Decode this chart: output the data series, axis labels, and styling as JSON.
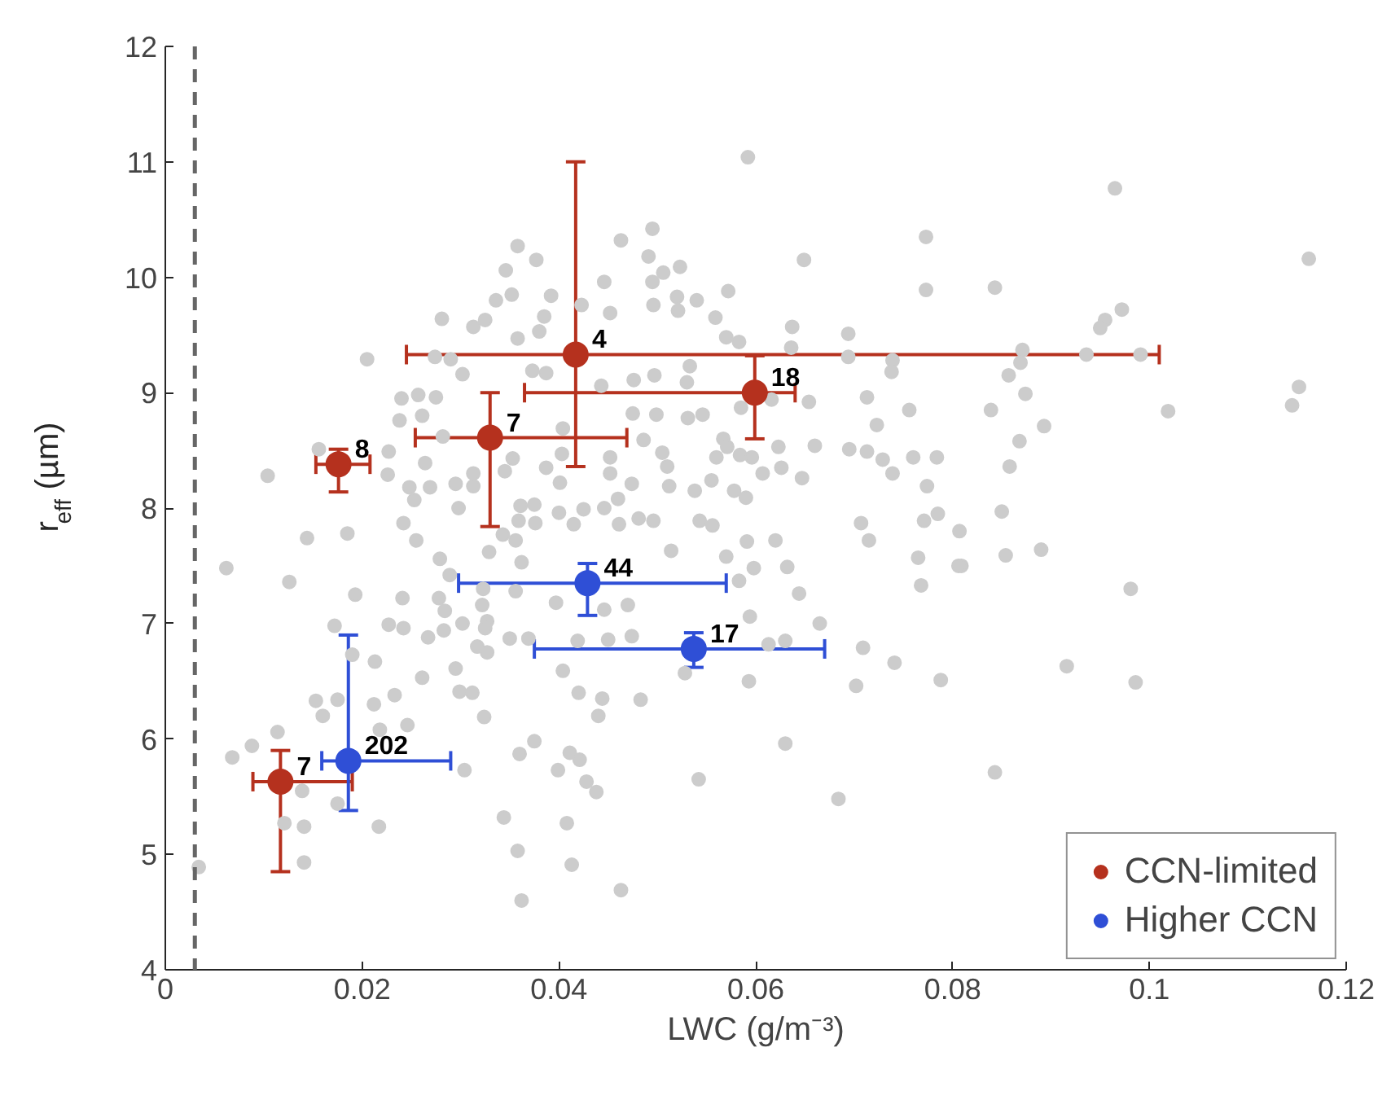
{
  "chart_data": {
    "type": "scatter",
    "xlabel": "LWC (g/m⁻³)",
    "ylabel": "r$_{eff}$ (µm)",
    "xlim": [
      0,
      0.12
    ],
    "xticks": [
      0,
      0.02,
      0.04,
      0.06,
      0.08,
      0.1,
      0.12
    ],
    "ylim": [
      4,
      12
    ],
    "yticks": [
      4,
      5,
      6,
      7,
      8,
      9,
      10,
      11,
      12
    ],
    "grid": false,
    "legend": "bottom right",
    "marker": "circle",
    "ref_lines": [
      {
        "axis": "x",
        "value": 0.003,
        "label": null,
        "color": "#666666",
        "line_style": "dashed"
      }
    ],
    "series": [
      {
        "color": "#cccccc",
        "x": [
          0.0358,
          0.0377,
          0.0346,
          0.0352,
          0.0336,
          0.0392,
          0.0281,
          0.0313,
          0.0325,
          0.0385,
          0.038,
          0.0358,
          0.0205,
          0.0274,
          0.029,
          0.0302,
          0.024,
          0.0257,
          0.0275,
          0.0238,
          0.0261,
          0.0282,
          0.0156,
          0.0104,
          0.0227,
          0.0226,
          0.0264,
          0.0248,
          0.0269,
          0.0295,
          0.0313,
          0.0313,
          0.0345,
          0.0353,
          0.0387,
          0.0403,
          0.0253,
          0.0298,
          0.0242,
          0.0255,
          0.0144,
          0.0185,
          0.0062,
          0.0361,
          0.0375,
          0.0359,
          0.0376,
          0.0343,
          0.0356,
          0.04,
          0.0329,
          0.0362,
          0.0279,
          0.0387,
          0.0373,
          0.0404,
          0.0401,
          0.0592,
          0.0773,
          0.0773,
          0.0649,
          0.0495,
          0.0463,
          0.0491,
          0.0523,
          0.0506,
          0.0446,
          0.0495,
          0.052,
          0.054,
          0.0572,
          0.0496,
          0.0521,
          0.0559,
          0.0423,
          0.0452,
          0.057,
          0.0583,
          0.0637,
          0.0694,
          0.0636,
          0.0694,
          0.0739,
          0.0738,
          0.0533,
          0.0497,
          0.0476,
          0.0443,
          0.053,
          0.0654,
          0.0713,
          0.0756,
          0.0723,
          0.0585,
          0.0616,
          0.0475,
          0.0499,
          0.0531,
          0.0546,
          0.0486,
          0.0567,
          0.0571,
          0.056,
          0.0584,
          0.0596,
          0.0623,
          0.066,
          0.0695,
          0.0713,
          0.0729,
          0.076,
          0.0784,
          0.0739,
          0.0647,
          0.0607,
          0.0626,
          0.0555,
          0.051,
          0.0505,
          0.0452,
          0.0452,
          0.0474,
          0.0512,
          0.0538,
          0.0578,
          0.059,
          0.0774,
          0.046,
          0.0425,
          0.0446,
          0.0496,
          0.0543,
          0.0556,
          0.0481,
          0.0785,
          0.0771,
          0.0707,
          0.0715,
          0.062,
          0.0591,
          0.057,
          0.0514,
          0.0461,
          0.0415,
          0.0965,
          0.1162,
          0.0843,
          0.0972,
          0.0955,
          0.095,
          0.0871,
          0.0936,
          0.0991,
          0.0869,
          0.0857,
          0.0874,
          0.0839,
          0.1019,
          0.1152,
          0.1145,
          0.0893,
          0.0868,
          0.0858,
          0.085,
          0.0807,
          0.0854,
          0.089,
          0.0809,
          0.0126,
          0.0193,
          0.0241,
          0.0278,
          0.0289,
          0.0284,
          0.0323,
          0.0322,
          0.0356,
          0.0397,
          0.0172,
          0.0227,
          0.0242,
          0.0267,
          0.0283,
          0.0302,
          0.0327,
          0.0325,
          0.035,
          0.0369,
          0.0317,
          0.0327,
          0.019,
          0.0213,
          0.0295,
          0.0261,
          0.0404,
          0.0299,
          0.0312,
          0.0233,
          0.0212,
          0.0153,
          0.0175,
          0.016,
          0.0324,
          0.0246,
          0.0218,
          0.0375,
          0.0114,
          0.0088,
          0.0068,
          0.036,
          0.0304,
          0.0399,
          0.0139,
          0.0175,
          0.0121,
          0.0141,
          0.0217,
          0.0344,
          0.0141,
          0.0358,
          0.0034,
          0.0362,
          0.0598,
          0.0632,
          0.0644,
          0.0583,
          0.047,
          0.0446,
          0.0765,
          0.0768,
          0.0806,
          0.0665,
          0.0594,
          0.0474,
          0.045,
          0.0419,
          0.0613,
          0.063,
          0.0709,
          0.0741,
          0.0788,
          0.0702,
          0.0593,
          0.0528,
          0.042,
          0.0444,
          0.0483,
          0.044,
          0.063,
          0.0411,
          0.0421,
          0.0428,
          0.0438,
          0.0542,
          0.0684,
          0.0408,
          0.0413,
          0.0463,
          0.0981,
          0.0916,
          0.0986,
          0.0843
        ],
        "values": [
          10.27,
          10.15,
          10.06,
          9.85,
          9.8,
          9.84,
          9.64,
          9.57,
          9.63,
          9.66,
          9.53,
          9.47,
          9.29,
          9.31,
          9.29,
          9.16,
          8.95,
          8.98,
          8.96,
          8.76,
          8.8,
          8.62,
          8.51,
          8.28,
          8.49,
          8.29,
          8.39,
          8.18,
          8.18,
          8.21,
          8.3,
          8.19,
          8.32,
          8.43,
          8.35,
          8.47,
          8.07,
          8.0,
          7.87,
          7.72,
          7.74,
          7.78,
          7.48,
          8.02,
          8.03,
          7.89,
          7.87,
          7.77,
          7.72,
          7.96,
          7.62,
          7.53,
          7.56,
          9.17,
          9.19,
          8.69,
          8.22,
          11.04,
          10.35,
          9.89,
          10.15,
          10.42,
          10.32,
          10.18,
          10.09,
          10.04,
          9.96,
          9.96,
          9.83,
          9.8,
          9.88,
          9.76,
          9.71,
          9.65,
          9.76,
          9.69,
          9.48,
          9.44,
          9.57,
          9.51,
          9.39,
          9.31,
          9.28,
          9.18,
          9.23,
          9.15,
          9.11,
          9.06,
          9.09,
          8.92,
          8.96,
          8.85,
          8.72,
          8.87,
          8.94,
          8.82,
          8.81,
          8.78,
          8.81,
          8.59,
          8.6,
          8.53,
          8.44,
          8.46,
          8.44,
          8.53,
          8.54,
          8.51,
          8.49,
          8.42,
          8.44,
          8.44,
          8.3,
          8.26,
          8.3,
          8.35,
          8.24,
          8.36,
          8.48,
          8.44,
          8.3,
          8.21,
          8.19,
          8.15,
          8.15,
          8.09,
          8.19,
          8.08,
          7.99,
          8.0,
          7.89,
          7.89,
          7.85,
          7.91,
          7.95,
          7.89,
          7.87,
          7.72,
          7.72,
          7.71,
          7.58,
          7.63,
          7.86,
          7.86,
          10.77,
          10.16,
          9.91,
          9.72,
          9.63,
          9.56,
          9.37,
          9.33,
          9.33,
          9.26,
          9.15,
          8.99,
          8.85,
          8.84,
          9.05,
          8.89,
          8.71,
          8.58,
          8.36,
          7.97,
          7.8,
          7.59,
          7.64,
          7.5,
          7.36,
          7.25,
          7.22,
          7.22,
          7.42,
          7.11,
          7.3,
          7.16,
          7.28,
          7.18,
          6.98,
          6.99,
          6.96,
          6.88,
          6.94,
          7.0,
          7.02,
          6.96,
          6.87,
          6.87,
          6.8,
          6.75,
          6.73,
          6.67,
          6.61,
          6.53,
          6.59,
          6.41,
          6.4,
          6.38,
          6.3,
          6.33,
          6.34,
          6.2,
          6.19,
          6.12,
          6.08,
          5.98,
          6.06,
          5.94,
          5.84,
          5.87,
          5.73,
          5.73,
          5.55,
          5.44,
          5.27,
          5.24,
          5.24,
          5.32,
          4.93,
          5.03,
          4.89,
          4.6,
          7.48,
          7.49,
          7.26,
          7.37,
          7.16,
          7.12,
          7.57,
          7.33,
          7.5,
          7.0,
          7.06,
          6.89,
          6.86,
          6.85,
          6.82,
          6.85,
          6.79,
          6.66,
          6.51,
          6.46,
          6.5,
          6.57,
          6.4,
          6.35,
          6.34,
          6.2,
          5.96,
          5.88,
          5.82,
          5.63,
          5.54,
          5.65,
          5.48,
          5.27,
          4.91,
          4.69,
          7.3,
          6.63,
          6.49,
          5.71
        ]
      },
      {
        "name": "CCN-limited",
        "color": "#b5311e",
        "x": [
          0.0176,
          0.033,
          0.0417,
          0.0599,
          0.0117
        ],
        "values": [
          8.38,
          8.61,
          9.33,
          9.0,
          5.63
        ],
        "errors": [
          [
            8.14,
            8.51
          ],
          [
            7.84,
            9.0
          ],
          [
            8.36,
            11.0
          ],
          [
            8.6,
            9.32
          ],
          [
            4.85,
            5.9
          ]
        ],
        "xerrors": [
          [
            0.0153,
            0.0208
          ],
          [
            0.0254,
            0.0469
          ],
          [
            0.0245,
            0.101
          ],
          [
            0.0365,
            0.064
          ],
          [
            0.0089,
            0.019
          ]
        ]
      },
      {
        "name": "Higher CCN",
        "color": "#2f4fd6",
        "x": [
          0.0186,
          0.0429,
          0.0537
        ],
        "values": [
          5.81,
          7.35,
          6.78
        ],
        "errors": [
          [
            5.38,
            6.9
          ],
          [
            7.07,
            7.52
          ],
          [
            6.62,
            6.92
          ]
        ],
        "xerrors": [
          [
            0.0159,
            0.029
          ],
          [
            0.0298,
            0.057
          ],
          [
            0.0375,
            0.067
          ]
        ]
      }
    ],
    "annotations": [
      {
        "text": "8",
        "x": 0.0176,
        "y": 8.38
      },
      {
        "text": "7",
        "x": 0.033,
        "y": 8.61
      },
      {
        "text": "4",
        "x": 0.0417,
        "y": 9.33
      },
      {
        "text": "18",
        "x": 0.0599,
        "y": 9.0
      },
      {
        "text": "7",
        "x": 0.0117,
        "y": 5.63
      },
      {
        "text": "202",
        "x": 0.0186,
        "y": 5.81
      },
      {
        "text": "44",
        "x": 0.0429,
        "y": 7.35
      },
      {
        "text": "17",
        "x": 0.0537,
        "y": 6.78
      }
    ]
  }
}
